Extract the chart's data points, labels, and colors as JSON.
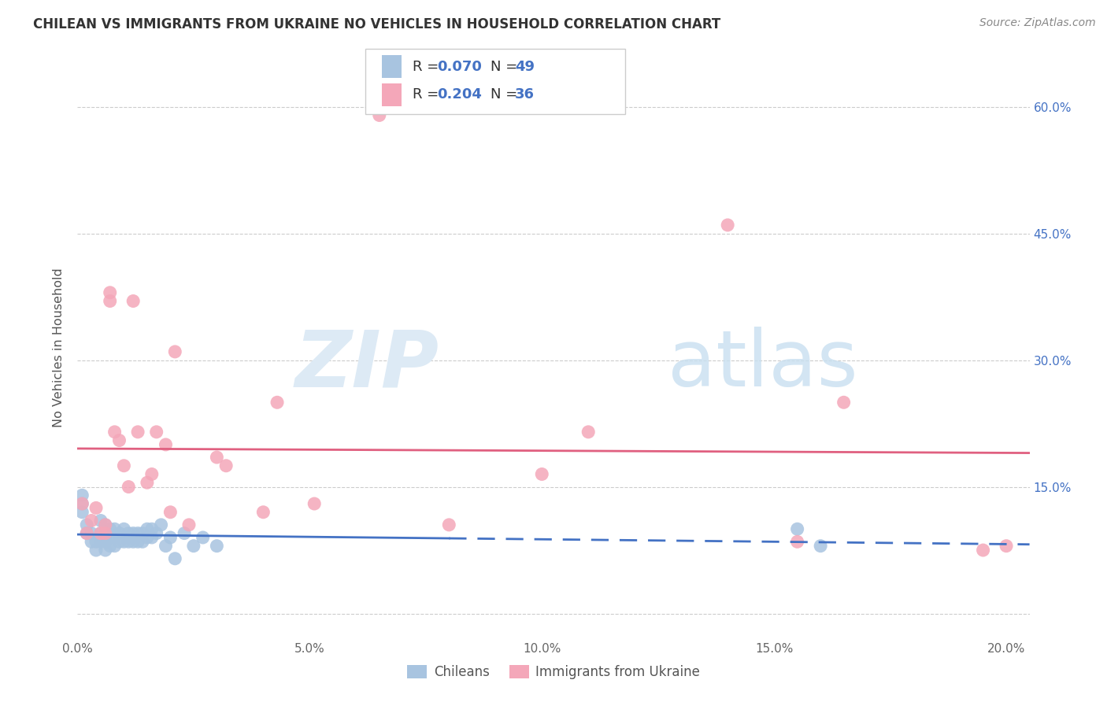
{
  "title": "CHILEAN VS IMMIGRANTS FROM UKRAINE NO VEHICLES IN HOUSEHOLD CORRELATION CHART",
  "source": "Source: ZipAtlas.com",
  "ylabel": "No Vehicles in Household",
  "xlim": [
    0.0,
    0.205
  ],
  "ylim": [
    -0.03,
    0.66
  ],
  "xticks": [
    0.0,
    0.05,
    0.1,
    0.15,
    0.2
  ],
  "xticklabels": [
    "0.0%",
    "5.0%",
    "10.0%",
    "15.0%",
    "20.0%"
  ],
  "yticks_right": [
    0.15,
    0.3,
    0.45,
    0.6
  ],
  "yticklabels_right": [
    "15.0%",
    "30.0%",
    "45.0%",
    "60.0%"
  ],
  "yticks_grid": [
    0.0,
    0.15,
    0.3,
    0.45,
    0.6
  ],
  "color_chilean": "#a8c4e0",
  "color_ukraine": "#f4a7b9",
  "color_line_chilean": "#4472c4",
  "color_line_ukraine": "#e06080",
  "watermark_zip": "ZIP",
  "watermark_atlas": "atlas",
  "chilean_x": [
    0.001,
    0.001,
    0.001,
    0.002,
    0.002,
    0.003,
    0.003,
    0.004,
    0.004,
    0.005,
    0.005,
    0.005,
    0.006,
    0.006,
    0.006,
    0.006,
    0.007,
    0.007,
    0.007,
    0.008,
    0.008,
    0.008,
    0.009,
    0.009,
    0.01,
    0.01,
    0.011,
    0.011,
    0.012,
    0.012,
    0.013,
    0.013,
    0.014,
    0.014,
    0.015,
    0.015,
    0.016,
    0.016,
    0.017,
    0.018,
    0.019,
    0.02,
    0.021,
    0.023,
    0.025,
    0.027,
    0.03,
    0.155,
    0.16
  ],
  "chilean_y": [
    0.13,
    0.14,
    0.12,
    0.105,
    0.095,
    0.085,
    0.095,
    0.085,
    0.075,
    0.085,
    0.095,
    0.11,
    0.085,
    0.09,
    0.075,
    0.105,
    0.08,
    0.09,
    0.1,
    0.08,
    0.09,
    0.1,
    0.085,
    0.095,
    0.085,
    0.1,
    0.085,
    0.095,
    0.085,
    0.095,
    0.095,
    0.085,
    0.085,
    0.095,
    0.09,
    0.1,
    0.09,
    0.1,
    0.095,
    0.105,
    0.08,
    0.09,
    0.065,
    0.095,
    0.08,
    0.09,
    0.08,
    0.1,
    0.08
  ],
  "ukraine_x": [
    0.001,
    0.002,
    0.003,
    0.004,
    0.005,
    0.006,
    0.006,
    0.007,
    0.007,
    0.008,
    0.009,
    0.01,
    0.011,
    0.012,
    0.013,
    0.015,
    0.016,
    0.017,
    0.019,
    0.02,
    0.021,
    0.024,
    0.03,
    0.032,
    0.04,
    0.043,
    0.051,
    0.065,
    0.08,
    0.1,
    0.11,
    0.14,
    0.155,
    0.165,
    0.195,
    0.2
  ],
  "ukraine_y": [
    0.13,
    0.095,
    0.11,
    0.125,
    0.095,
    0.105,
    0.095,
    0.38,
    0.37,
    0.215,
    0.205,
    0.175,
    0.15,
    0.37,
    0.215,
    0.155,
    0.165,
    0.215,
    0.2,
    0.12,
    0.31,
    0.105,
    0.185,
    0.175,
    0.12,
    0.25,
    0.13,
    0.59,
    0.105,
    0.165,
    0.215,
    0.46,
    0.085,
    0.25,
    0.075,
    0.08
  ]
}
